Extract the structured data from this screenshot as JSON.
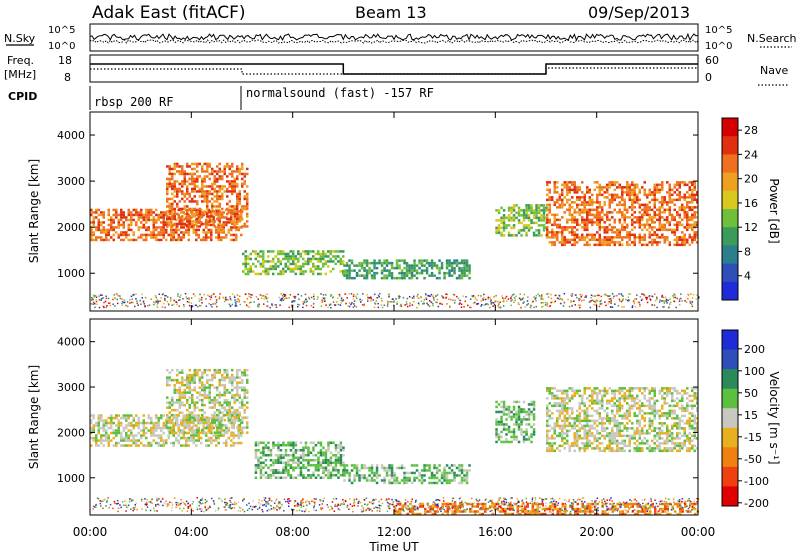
{
  "header": {
    "station": "Adak East (fitACF)",
    "beam": "Beam 13",
    "date": "09/Sep/2013"
  },
  "status_panels": {
    "nsky_label": "N.Sky",
    "nsky_ticks": [
      "10^5",
      "10^0"
    ],
    "nsearch_label": "N.Search",
    "nsearch_ticks": [
      "10^5",
      "10^0"
    ],
    "freq_label_1": "Freq.",
    "freq_label_2": "[MHz]",
    "freq_ticks": [
      "18",
      "8"
    ],
    "nave_label": "Nave",
    "nave_ticks": [
      "60",
      "0"
    ],
    "cpid_label": "CPID",
    "cpid_segments": [
      {
        "name": "rbsp 200 RF",
        "start_hour": 0.0
      },
      {
        "name": "normalsound (fast) -157 RF",
        "start_hour": 5.9
      }
    ],
    "freq_profile": [
      {
        "start_hour": 0,
        "end_hour": 6.0,
        "level": "high"
      },
      {
        "start_hour": 6.0,
        "end_hour": 10.0,
        "level": "high"
      },
      {
        "start_hour": 10.0,
        "end_hour": 18.0,
        "level": "low"
      },
      {
        "start_hour": 18.0,
        "end_hour": 24.0,
        "level": "high"
      }
    ]
  },
  "chart_data": [
    {
      "type": "heatmap",
      "panel": "power",
      "xlabel": "Time UT",
      "ylabel": "Slant Range [km]",
      "xlim": [
        "00:00",
        "00:00"
      ],
      "x_ticks": [
        "00:00",
        "04:00",
        "08:00",
        "12:00",
        "16:00",
        "20:00",
        "00:00"
      ],
      "ylim": [
        180,
        4500
      ],
      "y_ticks": [
        1000,
        2000,
        3000,
        4000
      ],
      "colorbar_label": "Power [dB]",
      "colorbar_ticks": [
        4,
        8,
        12,
        16,
        20,
        24,
        28
      ],
      "colorbar_range": [
        0,
        30
      ],
      "colorbar_colors": [
        "#1f2bd6",
        "#2f4fb8",
        "#2a7f8a",
        "#3a9b5a",
        "#6fbf3a",
        "#d8c81e",
        "#f0a020",
        "#f07020",
        "#e03010",
        "#d40000"
      ],
      "features": [
        {
          "label": "band",
          "start_hour": 0.0,
          "end_hour": 6.0,
          "range_km": [
            1700,
            2400
          ],
          "power_db": 24
        },
        {
          "label": "band",
          "start_hour": 3.0,
          "end_hour": 6.2,
          "range_km": [
            2000,
            3400
          ],
          "power_db": 22
        },
        {
          "label": "band",
          "start_hour": 6.0,
          "end_hour": 10.0,
          "range_km": [
            1000,
            1500
          ],
          "power_db": 14
        },
        {
          "label": "patches",
          "start_hour": 10.0,
          "end_hour": 15.0,
          "range_km": [
            900,
            1300
          ],
          "power_db": 10
        },
        {
          "label": "band",
          "start_hour": 16.0,
          "end_hour": 18.0,
          "range_km": [
            1800,
            2500
          ],
          "power_db": 14
        },
        {
          "label": "band",
          "start_hour": 18.0,
          "end_hour": 24.0,
          "range_km": [
            1600,
            3000
          ],
          "power_db": 22
        }
      ]
    },
    {
      "type": "heatmap",
      "panel": "velocity",
      "xlabel": "Time UT",
      "ylabel": "Slant Range [km]",
      "x_ticks": [
        "00:00",
        "04:00",
        "08:00",
        "12:00",
        "16:00",
        "20:00",
        "00:00"
      ],
      "ylim": [
        180,
        4500
      ],
      "y_ticks": [
        1000,
        2000,
        3000,
        4000
      ],
      "colorbar_label": "Velocity [m s⁻¹]",
      "colorbar_ticks": [
        200,
        100,
        50,
        15,
        -15,
        -50,
        -100,
        -200
      ],
      "colorbar_colors": [
        "#1f2bd6",
        "#2f4fb8",
        "#2a8a5a",
        "#5bc040",
        "#c8c8c0",
        "#e8b020",
        "#f08010",
        "#f04010",
        "#e00000"
      ],
      "features": [
        {
          "label": "ground scatter",
          "start_hour": 0.0,
          "end_hour": 6.0,
          "range_km": [
            1700,
            2400
          ],
          "velocity": 0
        },
        {
          "label": "ground scatter",
          "start_hour": 3.0,
          "end_hour": 6.2,
          "range_km": [
            2000,
            3400
          ],
          "velocity": 0
        },
        {
          "label": "ionospheric",
          "start_hour": 6.5,
          "end_hour": 10.0,
          "range_km": [
            1000,
            1800
          ],
          "velocity": 60
        },
        {
          "label": "ionospheric",
          "start_hour": 10.0,
          "end_hour": 15.0,
          "range_km": [
            900,
            1300
          ],
          "velocity": 60
        },
        {
          "label": "ionospheric",
          "start_hour": 16.0,
          "end_hour": 17.5,
          "range_km": [
            1800,
            2700
          ],
          "velocity": 50
        },
        {
          "label": "ground scatter",
          "start_hour": 18.0,
          "end_hour": 24.0,
          "range_km": [
            1600,
            3000
          ],
          "velocity": 0
        },
        {
          "label": "near range",
          "start_hour": 12.0,
          "end_hour": 24.0,
          "range_km": [
            200,
            450
          ],
          "velocity": -60
        }
      ]
    }
  ]
}
